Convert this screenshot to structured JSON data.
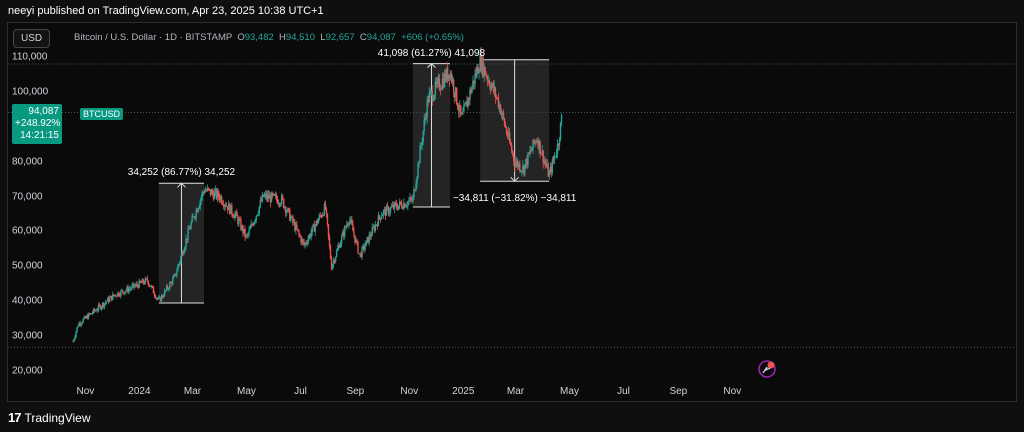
{
  "publish_line": "neeyi published on TradingView.com, Apr 23, 2025 10:38 UTC+1",
  "toolbar": {
    "currency": "USD"
  },
  "symbol": {
    "name": "Bitcoin / U.S. Dollar · 1D · BITSTAMP",
    "open_label": "O",
    "open": "93,482",
    "high_label": "H",
    "high": "94,510",
    "low_label": "L",
    "low": "92,657",
    "close_label": "C",
    "close": "94,087",
    "change": "+606 (+0.65%)"
  },
  "price_tag": {
    "price": "94,087",
    "change_pct": "+248.92%",
    "countdown": "14:21:15",
    "ticker": "BTCUSD"
  },
  "colors": {
    "up": "#26a69a",
    "down": "#ef5350",
    "accent": "#089981",
    "box_fill": "#3a3a3a",
    "grid": "#1e1e1e"
  },
  "measurements": [
    {
      "label": "34,252 (86.77%) 34,252"
    },
    {
      "label": "41,098 (61.27%) 41,098"
    },
    {
      "label": "−34,811 (−31.82%) −34,811"
    }
  ],
  "footer": {
    "brand": "TradingView"
  },
  "chart_data": {
    "type": "candlestick",
    "y_ticks": [
      "110,000",
      "100,000",
      "90,000",
      "80,000",
      "70,000",
      "60,000",
      "50,000",
      "40,000",
      "30,000",
      "20,000"
    ],
    "x_ticks": [
      "Nov",
      "2024",
      "Mar",
      "May",
      "Jul",
      "Sep",
      "Nov",
      "2025",
      "Mar",
      "May",
      "Jul",
      "Sep",
      "Nov"
    ],
    "ylim": [
      18000,
      114000
    ],
    "horizontal_lines": [
      94087,
      108000,
      26800
    ],
    "path": [
      [
        "2023-10-18",
        28500
      ],
      [
        "2023-10-24",
        33500
      ],
      [
        "2023-11-10",
        37000
      ],
      [
        "2023-12-05",
        42000
      ],
      [
        "2023-12-20",
        43500
      ],
      [
        "2024-01-10",
        46000
      ],
      [
        "2024-01-23",
        40000
      ],
      [
        "2024-02-10",
        47000
      ],
      [
        "2024-02-28",
        62000
      ],
      [
        "2024-03-14",
        72000
      ],
      [
        "2024-04-01",
        70000
      ],
      [
        "2024-04-20",
        64000
      ],
      [
        "2024-05-01",
        58000
      ],
      [
        "2024-05-20",
        70000
      ],
      [
        "2024-06-10",
        69000
      ],
      [
        "2024-07-05",
        56000
      ],
      [
        "2024-07-29",
        67000
      ],
      [
        "2024-08-05",
        50000
      ],
      [
        "2024-08-25",
        64000
      ],
      [
        "2024-09-06",
        53000
      ],
      [
        "2024-09-30",
        65000
      ],
      [
        "2024-10-15",
        67000
      ],
      [
        "2024-11-05",
        69000
      ],
      [
        "2024-11-22",
        98000
      ],
      [
        "2024-12-17",
        106000
      ],
      [
        "2024-12-30",
        92000
      ],
      [
        "2025-01-20",
        109000
      ],
      [
        "2025-02-10",
        97000
      ],
      [
        "2025-02-28",
        80000
      ],
      [
        "2025-03-10",
        78000
      ],
      [
        "2025-03-25",
        87000
      ],
      [
        "2025-04-08",
        76000
      ],
      [
        "2025-04-18",
        85000
      ],
      [
        "2025-04-23",
        94087
      ]
    ],
    "boxes": [
      {
        "x0": "2024-01-23",
        "x1": "2024-03-14",
        "y0": 39500,
        "y1": 73800,
        "direction": "up"
      },
      {
        "x0": "2024-11-05",
        "x1": "2024-12-17",
        "y0": 67000,
        "y1": 108100,
        "direction": "up"
      },
      {
        "x0": "2025-01-20",
        "x1": "2025-04-08",
        "y0": 74400,
        "y1": 109200,
        "direction": "down"
      }
    ]
  }
}
